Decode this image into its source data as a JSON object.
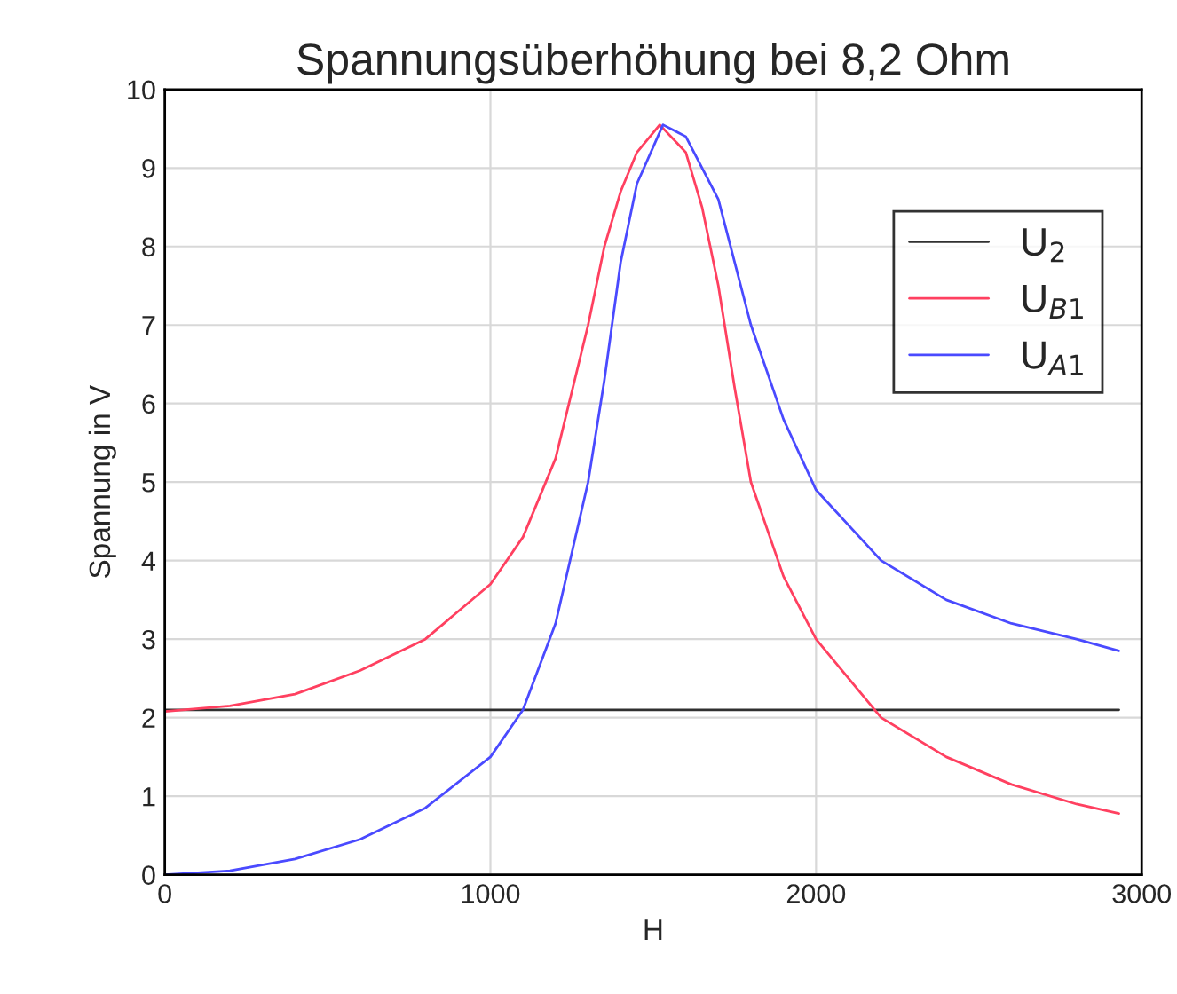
{
  "chart_data": {
    "type": "line",
    "title": "Spannungsüberhöhung bei 8,2 Ohm",
    "xlabel": "H",
    "ylabel": "Spannung in V",
    "xlim": [
      0,
      3000
    ],
    "xticks": [
      0,
      1000,
      2000,
      3000
    ],
    "ylim": [
      0,
      10
    ],
    "yticks": [
      0,
      1,
      2,
      3,
      4,
      5,
      6,
      7,
      8,
      9,
      10
    ],
    "grid": true,
    "legend": "top right",
    "marker": "none",
    "line_style": "solid",
    "series": [
      {
        "name": "U$_{2}$",
        "color": "#303030",
        "x": [
          0,
          2930
        ],
        "values": [
          2.1,
          2.1
        ]
      },
      {
        "name": "U$_{B1}$",
        "color": "#ff4060",
        "x": [
          0,
          200,
          400,
          600,
          800,
          1000,
          1100,
          1200,
          1300,
          1350,
          1400,
          1450,
          1520,
          1600,
          1650,
          1700,
          1750,
          1800,
          1900,
          2000,
          2200,
          2400,
          2600,
          2800,
          2930
        ],
        "values": [
          2.08,
          2.15,
          2.3,
          2.6,
          3.0,
          3.7,
          4.3,
          5.3,
          7.0,
          8.0,
          8.7,
          9.2,
          9.55,
          9.2,
          8.5,
          7.5,
          6.2,
          5.0,
          3.8,
          3.0,
          2.0,
          1.5,
          1.15,
          0.9,
          0.78
        ]
      },
      {
        "name": "U$_{A1}$",
        "color": "#4a4aff",
        "x": [
          0,
          200,
          400,
          600,
          800,
          1000,
          1100,
          1200,
          1300,
          1350,
          1400,
          1450,
          1530,
          1600,
          1700,
          1800,
          1900,
          2000,
          2200,
          2400,
          2600,
          2800,
          2930
        ],
        "values": [
          0.0,
          0.05,
          0.2,
          0.45,
          0.85,
          1.5,
          2.1,
          3.2,
          5.0,
          6.3,
          7.8,
          8.8,
          9.55,
          9.4,
          8.6,
          7.0,
          5.8,
          4.9,
          4.0,
          3.5,
          3.2,
          3.0,
          2.85
        ]
      }
    ]
  }
}
